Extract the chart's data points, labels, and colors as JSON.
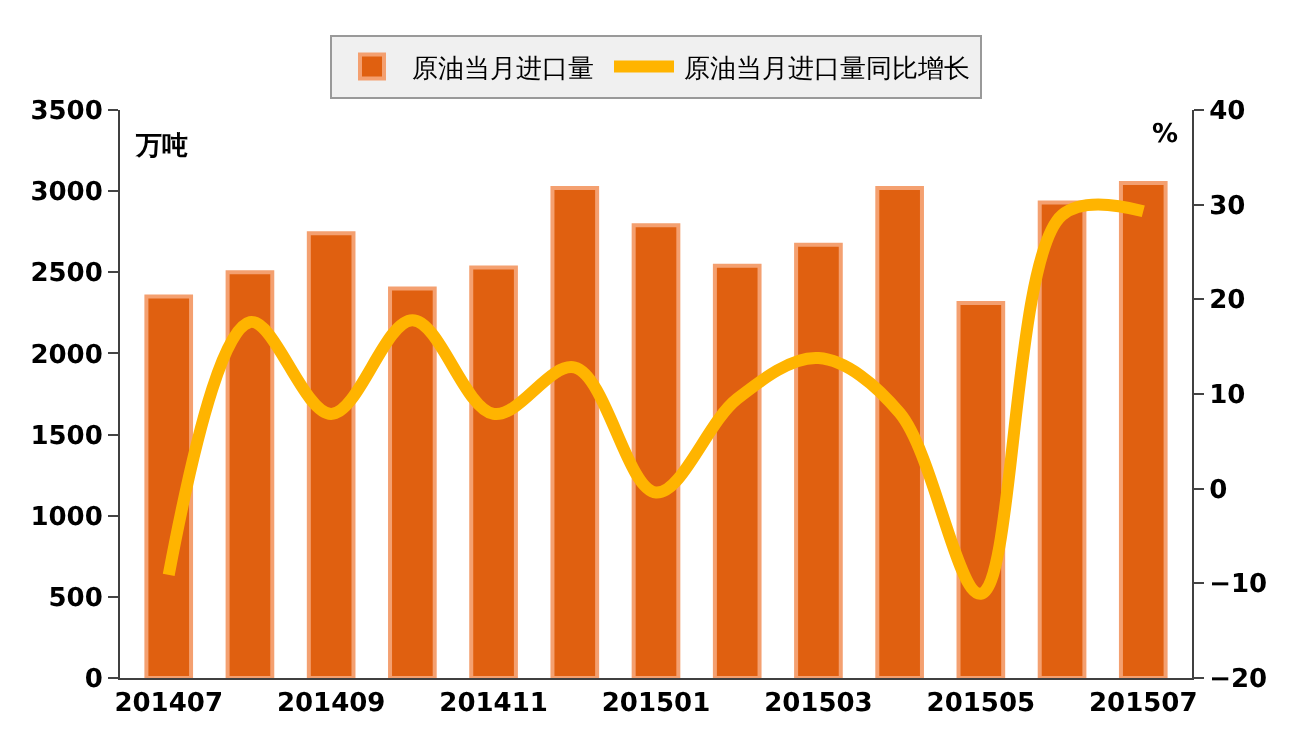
{
  "chart_data": {
    "type": "bar",
    "ylabel": "万吨",
    "y2label": "%",
    "categories": [
      "201407",
      null,
      "201409",
      null,
      "201411",
      null,
      "201501",
      null,
      "201503",
      null,
      "201505",
      null,
      "201507"
    ],
    "series": [
      {
        "name": "原油当月进口量",
        "color": "#e06010",
        "values": [
          2350,
          2500,
          2740,
          2400,
          2530,
          3020,
          2790,
          2540,
          2670,
          3020,
          2310,
          2930,
          3050
        ]
      },
      {
        "name": "原油当月进口量同比增长",
        "type": "line",
        "axis": "y2",
        "color": "#ffb400",
        "values": [
          -9.1,
          17.6,
          7.9,
          17.8,
          7.9,
          12.8,
          -0.4,
          9.5,
          13.8,
          8,
          -11.1,
          28.9,
          29.3
        ]
      }
    ],
    "ylim": [
      0,
      3500
    ],
    "yticks": [
      0,
      500,
      1000,
      1500,
      2000,
      2500,
      3000,
      3500
    ],
    "y2lim": [
      -20,
      40
    ],
    "y2ticks": [
      -20,
      -10,
      0,
      10,
      20,
      30,
      40
    ],
    "legend": "top",
    "marker": "none",
    "line_style": "solid"
  }
}
